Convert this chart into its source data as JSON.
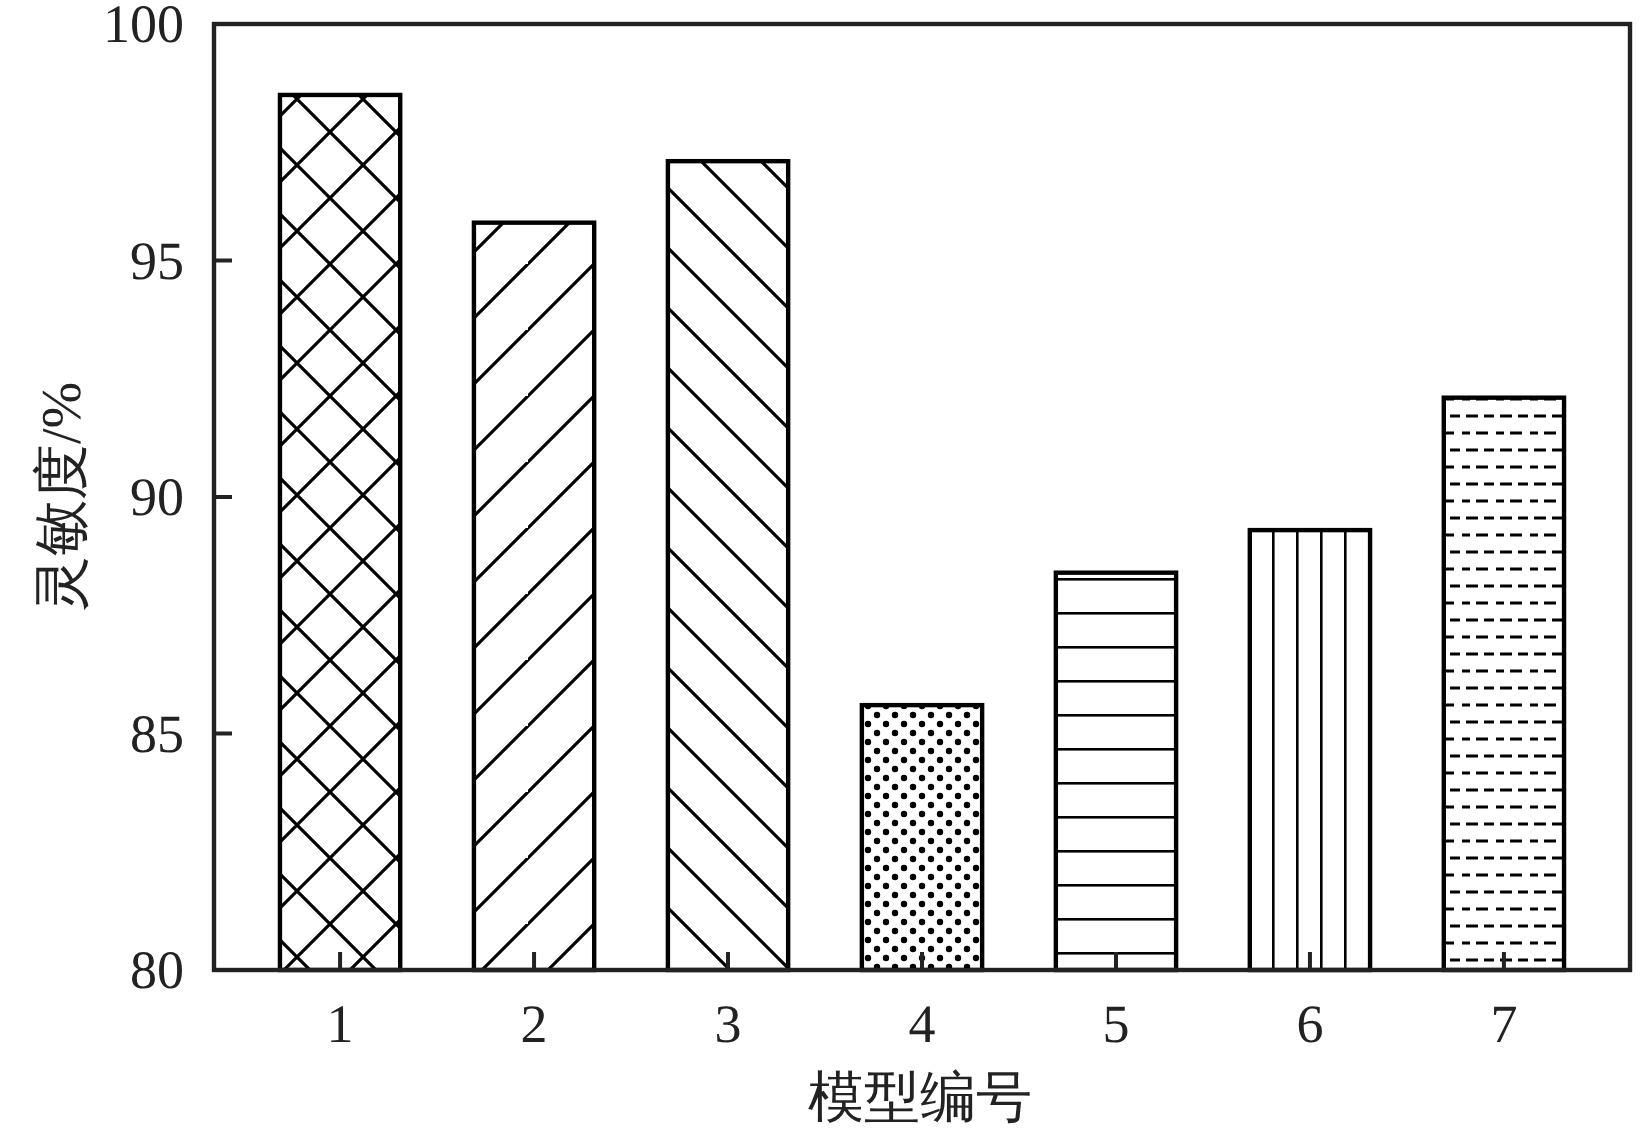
{
  "chart_data": {
    "type": "bar",
    "xlabel": "模型编号",
    "ylabel": "灵敏度/%",
    "categories": [
      "1",
      "2",
      "3",
      "4",
      "5",
      "6",
      "7"
    ],
    "values": [
      98.5,
      95.8,
      97.1,
      85.6,
      88.4,
      89.3,
      92.1
    ],
    "color": "#000000",
    "ylim": [
      80,
      100
    ],
    "yticks": [
      80,
      85,
      90,
      95,
      100
    ]
  }
}
